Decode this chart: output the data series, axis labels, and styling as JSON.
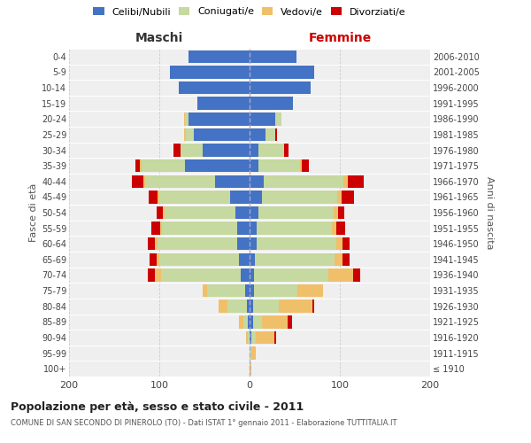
{
  "age_groups": [
    "100+",
    "95-99",
    "90-94",
    "85-89",
    "80-84",
    "75-79",
    "70-74",
    "65-69",
    "60-64",
    "55-59",
    "50-54",
    "45-49",
    "40-44",
    "35-39",
    "30-34",
    "25-29",
    "20-24",
    "15-19",
    "10-14",
    "5-9",
    "0-4"
  ],
  "birth_years": [
    "≤ 1910",
    "1911-1915",
    "1916-1920",
    "1921-1925",
    "1926-1930",
    "1931-1935",
    "1936-1940",
    "1941-1945",
    "1946-1950",
    "1951-1955",
    "1956-1960",
    "1961-1965",
    "1966-1970",
    "1971-1975",
    "1976-1980",
    "1981-1985",
    "1986-1990",
    "1991-1995",
    "1996-2000",
    "2001-2005",
    "2006-2010"
  ],
  "males_celibi": [
    0,
    0,
    0,
    2,
    3,
    5,
    10,
    12,
    14,
    14,
    16,
    22,
    38,
    72,
    52,
    62,
    68,
    58,
    78,
    88,
    68
  ],
  "males_coniugati": [
    0,
    0,
    2,
    5,
    22,
    42,
    88,
    88,
    88,
    83,
    78,
    78,
    78,
    48,
    24,
    9,
    4,
    0,
    0,
    0,
    0
  ],
  "males_vedovi": [
    0,
    0,
    2,
    5,
    9,
    5,
    7,
    3,
    3,
    2,
    2,
    2,
    2,
    2,
    0,
    2,
    1,
    0,
    0,
    0,
    0
  ],
  "males_divorziati": [
    0,
    0,
    0,
    0,
    0,
    0,
    8,
    8,
    8,
    10,
    7,
    10,
    12,
    4,
    8,
    0,
    0,
    0,
    0,
    0,
    0
  ],
  "females_nubili": [
    0,
    0,
    2,
    4,
    4,
    5,
    5,
    6,
    8,
    8,
    10,
    14,
    16,
    10,
    10,
    18,
    28,
    48,
    68,
    72,
    52
  ],
  "females_coniugate": [
    0,
    2,
    5,
    10,
    28,
    48,
    82,
    88,
    88,
    83,
    83,
    83,
    88,
    46,
    28,
    10,
    7,
    0,
    0,
    0,
    0
  ],
  "females_vedove": [
    2,
    5,
    20,
    28,
    38,
    28,
    28,
    9,
    7,
    5,
    5,
    5,
    5,
    2,
    0,
    0,
    0,
    0,
    0,
    0,
    0
  ],
  "females_divorziate": [
    0,
    0,
    2,
    5,
    2,
    0,
    8,
    8,
    8,
    10,
    7,
    14,
    17,
    8,
    5,
    2,
    0,
    0,
    0,
    0,
    0
  ],
  "color_celibi": "#4472c4",
  "color_coniugati": "#c5d9a0",
  "color_vedovi": "#f0bf6a",
  "color_divorziati": "#cc0000",
  "title_main": "Popolazione per età, sesso e stato civile - 2011",
  "title_sub": "COMUNE DI SAN SECONDO DI PINEROLO (TO) - Dati ISTAT 1° gennaio 2011 - Elaborazione TUTTITALIA.IT",
  "label_maschi": "Maschi",
  "label_femmine": "Femmine",
  "ylabel_left": "Fasce di età",
  "ylabel_right": "Anni di nascita",
  "xlim": 200,
  "legend_labels": [
    "Celibi/Nubili",
    "Coniugati/e",
    "Vedovi/e",
    "Divorziati/e"
  ],
  "bg_color": "#efefef",
  "grid_color": "#cccccc"
}
